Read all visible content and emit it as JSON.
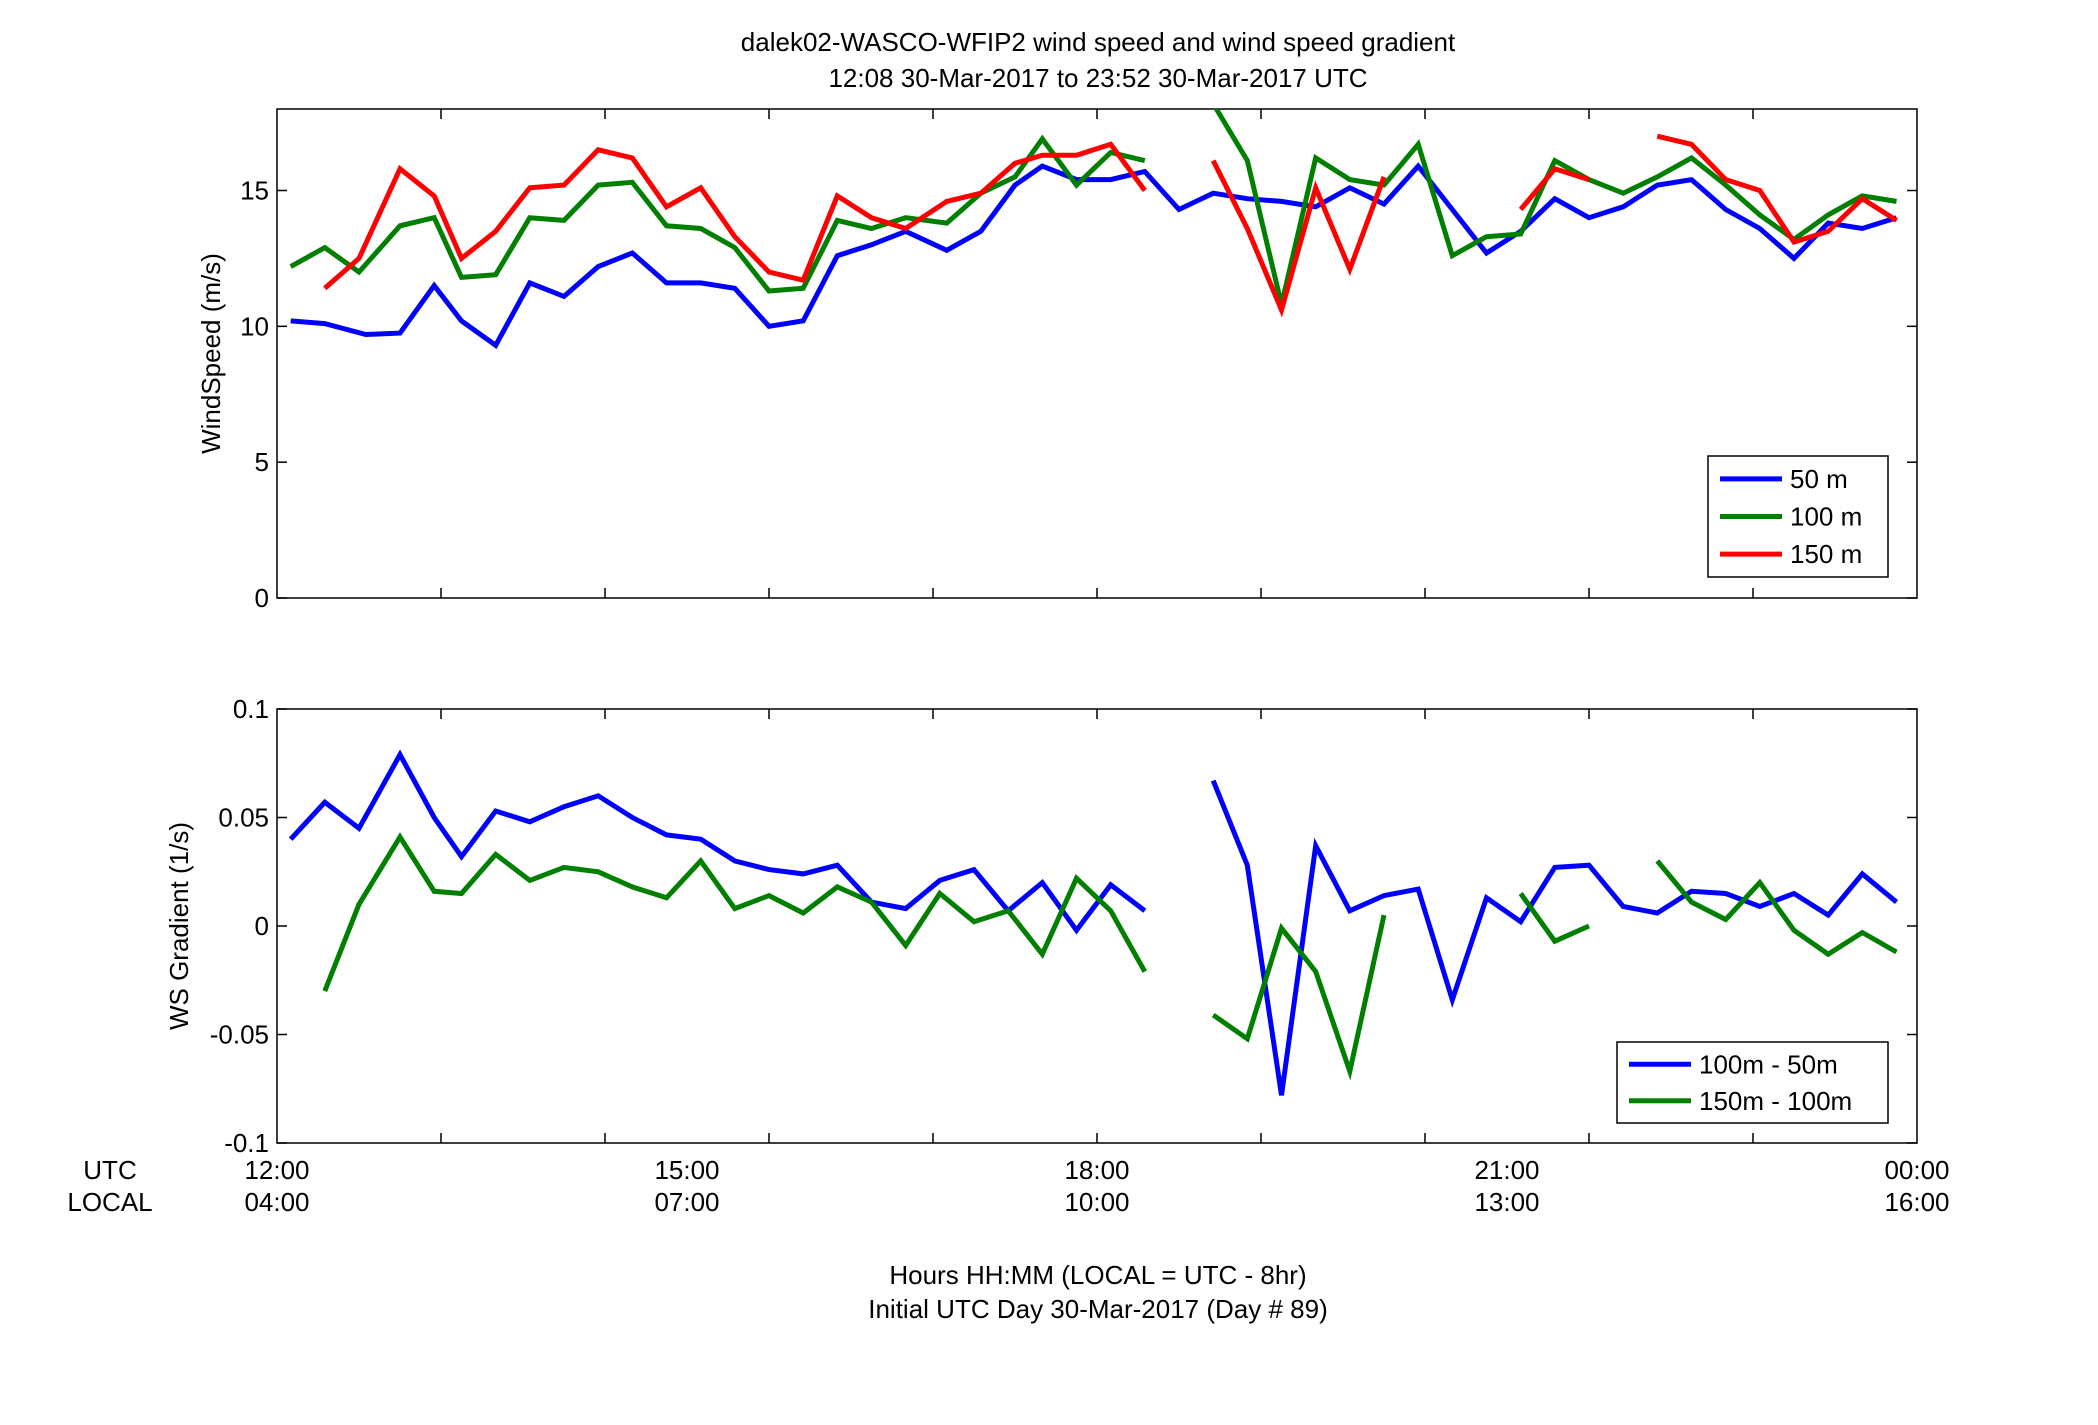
{
  "figure": {
    "title_line1": "dalek02-WASCO-WFIP2  wind speed and wind speed gradient",
    "title_line2": "12:08 30-Mar-2017 to 23:52 30-Mar-2017  UTC",
    "xlabel_line1": "Hours HH:MM  (LOCAL = UTC - 8hr)",
    "xlabel_line2": "Initial UTC Day 30-Mar-2017 (Day # 89)",
    "row_label_utc": "UTC",
    "row_label_local": "LOCAL",
    "x_ticks_utc": [
      "12:00",
      "15:00",
      "18:00",
      "21:00",
      "00:00"
    ],
    "x_ticks_local": [
      "04:00",
      "07:00",
      "10:00",
      "13:00",
      "16:00"
    ]
  },
  "chart_data": [
    {
      "type": "line",
      "ylabel": "WindSpeed (m/s)",
      "xlim": [
        12,
        24
      ],
      "ylim": [
        0,
        18
      ],
      "yticks": [
        0,
        5,
        10,
        15
      ],
      "ytick_labels": [
        "0",
        "5",
        "10",
        "15"
      ],
      "x_minor_tick_step_hours": 1.2,
      "grid": false,
      "legend_position": "bottom-right",
      "series": [
        {
          "name": "50 m",
          "color": "#0000ff",
          "points": [
            [
              12.1,
              10.2
            ],
            [
              12.35,
              10.1
            ],
            [
              12.65,
              9.7
            ],
            [
              12.9,
              9.75
            ],
            [
              13.15,
              11.5
            ],
            [
              13.35,
              10.2
            ],
            [
              13.6,
              9.3
            ],
            [
              13.85,
              11.6
            ],
            [
              14.1,
              11.1
            ],
            [
              14.35,
              12.2
            ],
            [
              14.6,
              12.7
            ],
            [
              14.85,
              11.6
            ],
            [
              15.1,
              11.6
            ],
            [
              15.35,
              11.4
            ],
            [
              15.6,
              10.0
            ],
            [
              15.85,
              10.2
            ],
            [
              16.1,
              12.6
            ],
            [
              16.35,
              13.0
            ],
            [
              16.6,
              13.5
            ],
            [
              16.9,
              12.8
            ],
            [
              17.15,
              13.5
            ],
            [
              17.4,
              15.2
            ],
            [
              17.6,
              15.9
            ],
            [
              17.85,
              15.4
            ],
            [
              18.1,
              15.4
            ],
            [
              18.35,
              15.7
            ],
            [
              18.6,
              14.3
            ],
            [
              18.85,
              14.9
            ],
            [
              19.1,
              14.7
            ],
            [
              19.35,
              14.6
            ],
            [
              19.6,
              14.4
            ],
            [
              19.85,
              15.1
            ],
            [
              20.1,
              14.5
            ],
            [
              20.35,
              15.9
            ],
            [
              20.6,
              14.3
            ],
            [
              20.85,
              12.7
            ],
            [
              21.1,
              13.5
            ],
            [
              21.35,
              14.7
            ],
            [
              21.6,
              14.0
            ],
            [
              21.85,
              14.4
            ],
            [
              22.1,
              15.2
            ],
            [
              22.35,
              15.4
            ],
            [
              22.6,
              14.3
            ],
            [
              22.85,
              13.6
            ],
            [
              23.1,
              12.5
            ],
            [
              23.35,
              13.8
            ],
            [
              23.6,
              13.6
            ],
            [
              23.85,
              14.0
            ]
          ]
        },
        {
          "name": "100 m",
          "color": "#007f00",
          "points": [
            [
              12.1,
              12.2
            ],
            [
              12.35,
              12.9
            ],
            [
              12.6,
              12.0
            ],
            [
              12.9,
              13.7
            ],
            [
              13.15,
              14.0
            ],
            [
              13.35,
              11.8
            ],
            [
              13.6,
              11.9
            ],
            [
              13.85,
              14.0
            ],
            [
              14.1,
              13.9
            ],
            [
              14.35,
              15.2
            ],
            [
              14.6,
              15.3
            ],
            [
              14.85,
              13.7
            ],
            [
              15.1,
              13.6
            ],
            [
              15.35,
              12.9
            ],
            [
              15.6,
              11.3
            ],
            [
              15.85,
              11.4
            ],
            [
              16.1,
              13.9
            ],
            [
              16.35,
              13.6
            ],
            [
              16.6,
              14.0
            ],
            [
              16.9,
              13.8
            ],
            [
              17.15,
              14.9
            ],
            [
              17.4,
              15.5
            ],
            [
              17.6,
              16.9
            ],
            [
              17.85,
              15.2
            ],
            [
              18.1,
              16.4
            ],
            [
              18.35,
              16.1
            ],
            [
              null,
              null
            ],
            [
              18.85,
              18.2
            ],
            [
              19.1,
              16.1
            ],
            [
              19.35,
              10.8
            ],
            [
              19.6,
              16.2
            ],
            [
              19.85,
              15.4
            ],
            [
              20.1,
              15.2
            ],
            [
              20.35,
              16.7
            ],
            [
              20.6,
              12.6
            ],
            [
              20.85,
              13.3
            ],
            [
              21.1,
              13.4
            ],
            [
              21.35,
              16.1
            ],
            [
              21.6,
              15.4
            ],
            [
              21.85,
              14.9
            ],
            [
              22.1,
              15.5
            ],
            [
              22.35,
              16.2
            ],
            [
              22.6,
              15.2
            ],
            [
              22.85,
              14.1
            ],
            [
              23.1,
              13.2
            ],
            [
              23.35,
              14.1
            ],
            [
              23.6,
              14.8
            ],
            [
              23.85,
              14.6
            ]
          ]
        },
        {
          "name": "150 m",
          "color": "#ff0000",
          "points": [
            [
              12.35,
              11.4
            ],
            [
              12.6,
              12.5
            ],
            [
              12.9,
              15.8
            ],
            [
              13.15,
              14.8
            ],
            [
              13.35,
              12.5
            ],
            [
              13.6,
              13.5
            ],
            [
              13.85,
              15.1
            ],
            [
              14.1,
              15.2
            ],
            [
              14.35,
              16.5
            ],
            [
              14.6,
              16.2
            ],
            [
              14.85,
              14.4
            ],
            [
              15.1,
              15.1
            ],
            [
              15.35,
              13.3
            ],
            [
              15.6,
              12.0
            ],
            [
              15.85,
              11.7
            ],
            [
              16.1,
              14.8
            ],
            [
              16.35,
              14.0
            ],
            [
              16.6,
              13.6
            ],
            [
              16.9,
              14.6
            ],
            [
              17.15,
              14.9
            ],
            [
              17.4,
              16.0
            ],
            [
              17.6,
              16.3
            ],
            [
              17.85,
              16.3
            ],
            [
              18.1,
              16.7
            ],
            [
              18.35,
              15.0
            ],
            [
              null,
              null
            ],
            [
              18.85,
              16.1
            ],
            [
              19.1,
              13.6
            ],
            [
              19.35,
              10.6
            ],
            [
              19.6,
              15.1
            ],
            [
              19.85,
              12.1
            ],
            [
              20.1,
              15.5
            ],
            [
              null,
              null
            ],
            [
              21.1,
              14.3
            ],
            [
              21.35,
              15.8
            ],
            [
              21.6,
              15.4
            ],
            [
              null,
              null
            ],
            [
              22.1,
              17.0
            ],
            [
              22.35,
              16.7
            ],
            [
              22.6,
              15.4
            ],
            [
              22.85,
              15.0
            ],
            [
              23.1,
              13.1
            ],
            [
              23.35,
              13.5
            ],
            [
              23.6,
              14.7
            ],
            [
              23.85,
              13.9
            ]
          ]
        }
      ]
    },
    {
      "type": "line",
      "ylabel": "WS Gradient (1/s)",
      "xlim": [
        12,
        24
      ],
      "ylim": [
        -0.1,
        0.1
      ],
      "yticks": [
        -0.1,
        -0.05,
        0,
        0.05,
        0.1
      ],
      "ytick_labels": [
        "-0.1",
        "-0.05",
        "0",
        "0.05",
        "0.1"
      ],
      "x_minor_tick_step_hours": 1.2,
      "grid": false,
      "legend_position": "bottom-right",
      "series": [
        {
          "name": "100m - 50m",
          "color": "#0000ff",
          "points": [
            [
              12.1,
              0.04
            ],
            [
              12.35,
              0.057
            ],
            [
              12.6,
              0.045
            ],
            [
              12.9,
              0.079
            ],
            [
              13.15,
              0.05
            ],
            [
              13.35,
              0.032
            ],
            [
              13.6,
              0.053
            ],
            [
              13.85,
              0.048
            ],
            [
              14.1,
              0.055
            ],
            [
              14.35,
              0.06
            ],
            [
              14.6,
              0.05
            ],
            [
              14.85,
              0.042
            ],
            [
              15.1,
              0.04
            ],
            [
              15.35,
              0.03
            ],
            [
              15.6,
              0.026
            ],
            [
              15.85,
              0.024
            ],
            [
              16.1,
              0.028
            ],
            [
              16.35,
              0.011
            ],
            [
              16.6,
              0.008
            ],
            [
              16.85,
              0.021
            ],
            [
              17.1,
              0.026
            ],
            [
              17.35,
              0.007
            ],
            [
              17.6,
              0.02
            ],
            [
              17.85,
              -0.002
            ],
            [
              18.1,
              0.019
            ],
            [
              18.35,
              0.007
            ],
            [
              null,
              null
            ],
            [
              18.85,
              0.067
            ],
            [
              19.1,
              0.028
            ],
            [
              19.35,
              -0.078
            ],
            [
              19.6,
              0.037
            ],
            [
              19.85,
              0.007
            ],
            [
              20.1,
              0.014
            ],
            [
              20.35,
              0.017
            ],
            [
              20.6,
              -0.034
            ],
            [
              20.85,
              0.013
            ],
            [
              21.1,
              0.002
            ],
            [
              21.35,
              0.027
            ],
            [
              21.6,
              0.028
            ],
            [
              21.85,
              0.009
            ],
            [
              22.1,
              0.006
            ],
            [
              22.35,
              0.016
            ],
            [
              22.6,
              0.015
            ],
            [
              22.85,
              0.009
            ],
            [
              23.1,
              0.015
            ],
            [
              23.35,
              0.005
            ],
            [
              23.6,
              0.024
            ],
            [
              23.85,
              0.011
            ]
          ]
        },
        {
          "name": "150m - 100m",
          "color": "#007f00",
          "points": [
            [
              12.35,
              -0.03
            ],
            [
              12.6,
              0.01
            ],
            [
              12.9,
              0.041
            ],
            [
              13.15,
              0.016
            ],
            [
              13.35,
              0.015
            ],
            [
              13.6,
              0.033
            ],
            [
              13.85,
              0.021
            ],
            [
              14.1,
              0.027
            ],
            [
              14.35,
              0.025
            ],
            [
              14.6,
              0.018
            ],
            [
              14.85,
              0.013
            ],
            [
              15.1,
              0.03
            ],
            [
              15.35,
              0.008
            ],
            [
              15.6,
              0.014
            ],
            [
              15.85,
              0.006
            ],
            [
              16.1,
              0.018
            ],
            [
              16.35,
              0.011
            ],
            [
              16.6,
              -0.009
            ],
            [
              16.85,
              0.015
            ],
            [
              17.1,
              0.002
            ],
            [
              17.35,
              0.007
            ],
            [
              17.6,
              -0.013
            ],
            [
              17.85,
              0.022
            ],
            [
              18.1,
              0.007
            ],
            [
              18.35,
              -0.021
            ],
            [
              null,
              null
            ],
            [
              18.85,
              -0.041
            ],
            [
              19.1,
              -0.052
            ],
            [
              19.35,
              -0.001
            ],
            [
              19.6,
              -0.021
            ],
            [
              19.85,
              -0.067
            ],
            [
              20.1,
              0.005
            ],
            [
              null,
              null
            ],
            [
              21.1,
              0.015
            ],
            [
              21.35,
              -0.007
            ],
            [
              21.6,
              0.0
            ],
            [
              null,
              null
            ],
            [
              22.1,
              0.03
            ],
            [
              22.35,
              0.011
            ],
            [
              22.6,
              0.003
            ],
            [
              22.85,
              0.02
            ],
            [
              23.1,
              -0.002
            ],
            [
              23.35,
              -0.013
            ],
            [
              23.6,
              -0.003
            ],
            [
              23.85,
              -0.012
            ]
          ]
        }
      ]
    }
  ]
}
